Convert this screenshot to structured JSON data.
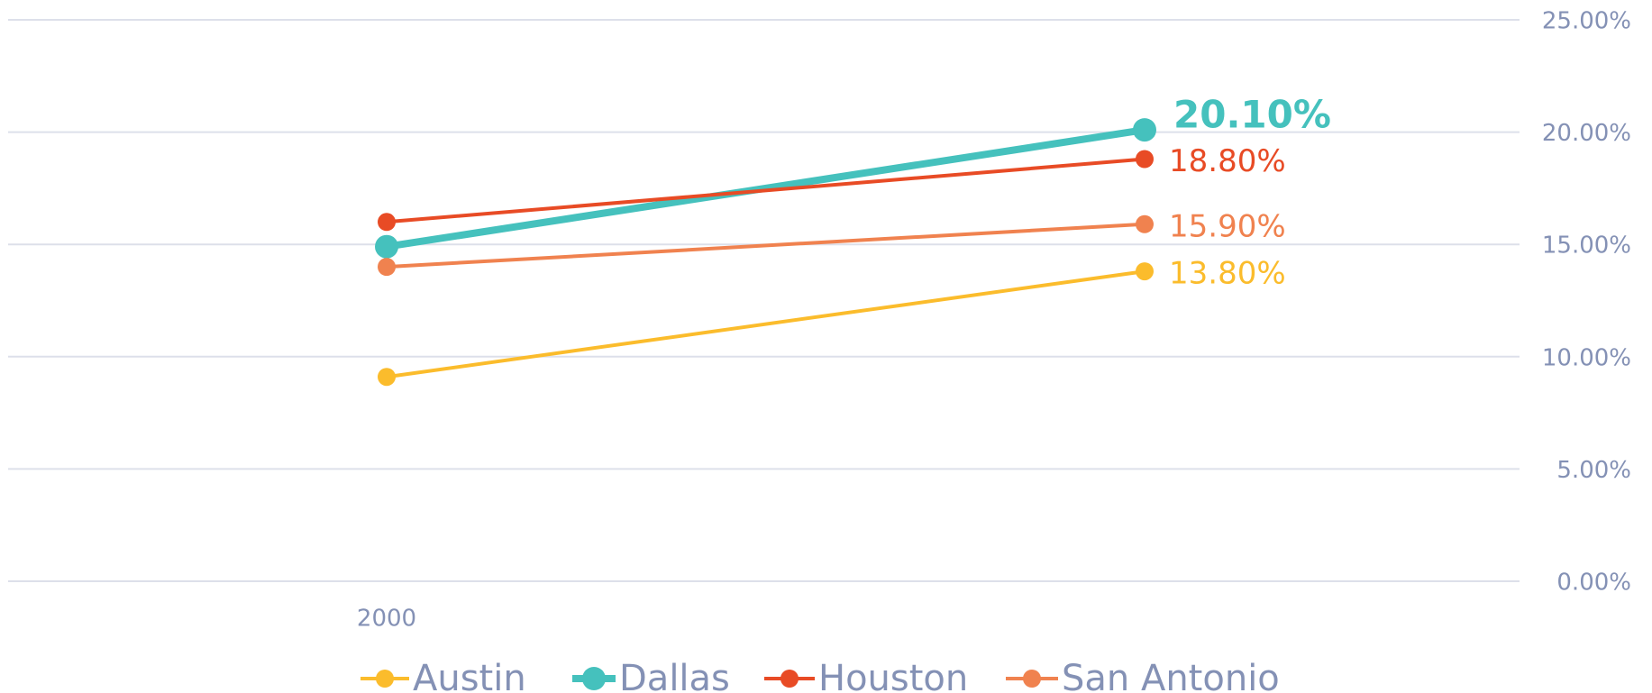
{
  "chart_data": {
    "type": "line",
    "categories": [
      "2000",
      null
    ],
    "series": [
      {
        "name": "Austin",
        "color": "#fbbc2c",
        "line_width": 4,
        "values": [
          9.1,
          13.8
        ],
        "value_labels": [
          null,
          "13.80%"
        ]
      },
      {
        "name": "Dallas",
        "color": "#45c1bd",
        "line_width": 8,
        "values": [
          14.9,
          20.1
        ],
        "value_labels": [
          null,
          "20.10%"
        ]
      },
      {
        "name": "Houston",
        "color": "#e84b25",
        "line_width": 4,
        "values": [
          16.0,
          18.8
        ],
        "value_labels": [
          null,
          "18.80%"
        ]
      },
      {
        "name": "San Antonio",
        "color": "#f0824f",
        "line_width": 4,
        "values": [
          14.0,
          15.9
        ],
        "value_labels": [
          null,
          "15.90%"
        ]
      }
    ],
    "ylim": [
      0,
      25
    ],
    "yticks": [
      {
        "value": 0,
        "label": "0.00%"
      },
      {
        "value": 5,
        "label": "5.00%"
      },
      {
        "value": 10,
        "label": "10.00%"
      },
      {
        "value": 15,
        "label": "15.00%"
      },
      {
        "value": 20,
        "label": "20.00%"
      },
      {
        "value": 25,
        "label": "25.00%"
      }
    ],
    "grid": true,
    "y_axis_side": "right",
    "legend": "bottom"
  }
}
